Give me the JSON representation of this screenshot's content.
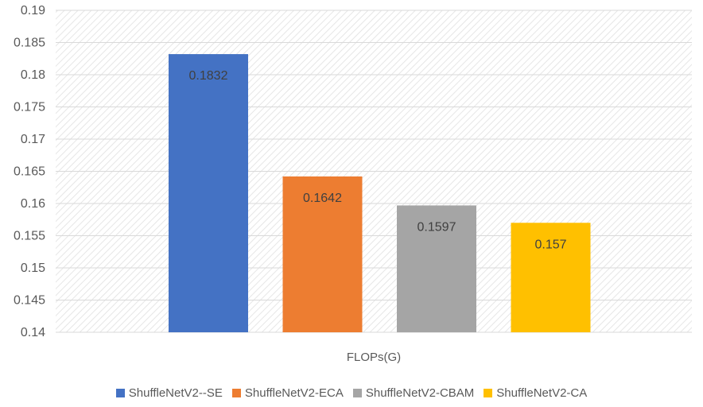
{
  "chart_data": {
    "type": "bar",
    "xlabel": "FLOPs(G)",
    "ylim": [
      0.14,
      0.19
    ],
    "yticks": [
      "0.14",
      "0.145",
      "0.15",
      "0.155",
      "0.16",
      "0.165",
      "0.17",
      "0.175",
      "0.18",
      "0.185",
      "0.19"
    ],
    "grid": true,
    "legend_position": "bottom",
    "series": [
      {
        "name": "ShuffleNetV2--SE",
        "value": 0.1832,
        "label": "0.1832",
        "color": "#4472C4"
      },
      {
        "name": "ShuffleNetV2-ECA",
        "value": 0.1642,
        "label": "0.1642",
        "color": "#ED7D31"
      },
      {
        "name": "ShuffleNetV2-CBAM",
        "value": 0.1597,
        "label": "0.1597",
        "color": "#A5A5A5"
      },
      {
        "name": "ShuffleNetV2-CA",
        "value": 0.157,
        "label": "0.157",
        "color": "#FFC000"
      }
    ]
  }
}
